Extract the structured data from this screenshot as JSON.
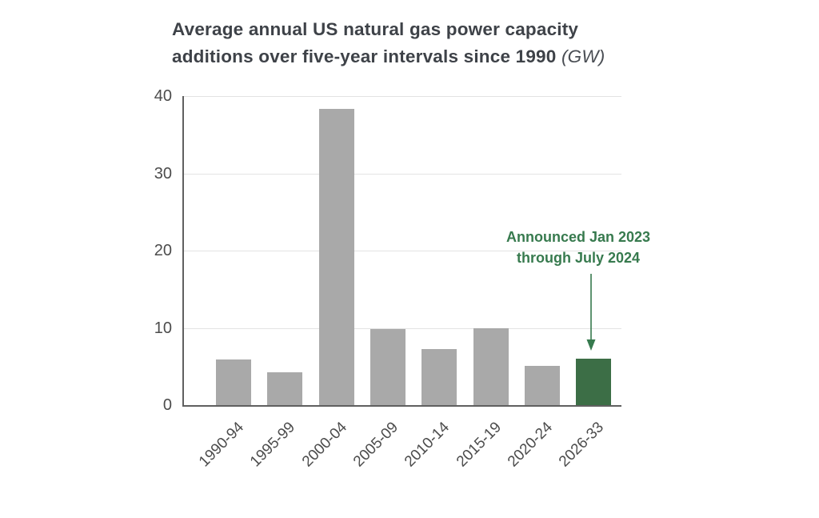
{
  "title": {
    "main": "Average annual US natural gas power capacity additions over five-year intervals since 1990 ",
    "unit": "(GW)"
  },
  "annotation": {
    "line1": "Announced Jan 2023",
    "line2": "through July 2024"
  },
  "chart_data": {
    "type": "bar",
    "title": "Average annual US natural gas power capacity additions over five-year intervals since 1990 (GW)",
    "categories": [
      "1990-94",
      "1995-99",
      "2000-04",
      "2005-09",
      "2010-14",
      "2015-19",
      "2020-24",
      "2026-33"
    ],
    "values": [
      5.9,
      4.2,
      38.3,
      9.8,
      7.3,
      10,
      5.1,
      6
    ],
    "highlighted_category": "2026-33",
    "annotation_text": "Announced Jan 2023 through July 2024",
    "annotation_target": "2026-33",
    "xlabel": "",
    "ylabel": "GW",
    "ylim": [
      0,
      40
    ],
    "yticks": [
      0,
      10,
      20,
      30,
      40
    ],
    "grid": "horizontal",
    "legend": "none",
    "colors": {
      "bar": "#a9a9a9",
      "highlight": "#3c6e46",
      "annotation": "#377a4e"
    }
  }
}
